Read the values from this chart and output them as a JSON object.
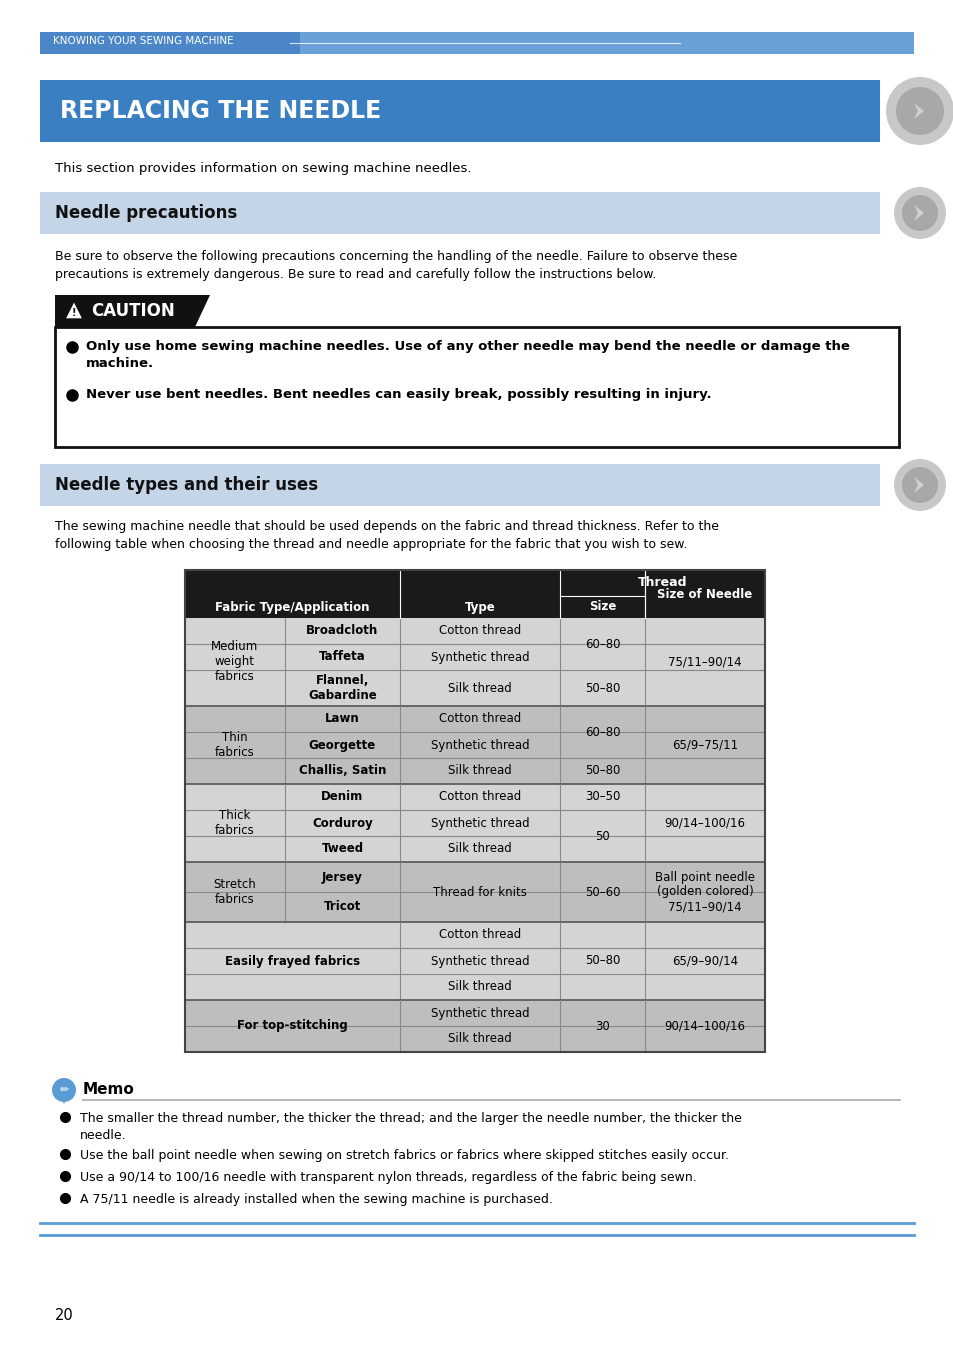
{
  "page_bg": "#ffffff",
  "top_bar_color": "#5b9bd5",
  "top_bar_text": "KNOWING YOUR SEWING MACHINE",
  "main_title": "REPLACING THE NEEDLE",
  "main_title_bg": "#3a7fc1",
  "section1_title": "Needle precautions",
  "section1_bg": "#c5d5e8",
  "section2_title": "Needle types and their uses",
  "section2_bg": "#c5d5e8",
  "intro_text1": "This section provides information on sewing machine needles.",
  "precaution_text_line1": "Be sure to observe the following precautions concerning the handling of the needle. Failure to observe these",
  "precaution_text_line2": "precautions is extremely dangerous. Be sure to read and carefully follow the instructions below.",
  "caution_bullet1a": "Only use home sewing machine needles. Use of any other needle may bend the needle or damage the",
  "caution_bullet1b": "machine.",
  "caution_bullet2": "Never use bent needles. Bent needles can easily break, possibly resulting in injury.",
  "intro3_line1": "The sewing machine needle that should be used depends on the fabric and thread thickness. Refer to the",
  "intro3_line2": "following table when choosing the thread and needle appropriate for the fabric that you wish to sew.",
  "memo_bullet1a": "The smaller the thread number, the thicker the thread; and the larger the needle number, the thicker the",
  "memo_bullet1b": "needle.",
  "memo_bullet2": "Use the ball point needle when sewing on stretch fabrics or fabrics where skipped stitches easily occur.",
  "memo_bullet3": "Use a 90/14 to 100/16 needle with transparent nylon threads, regardless of the fabric being sewn.",
  "memo_bullet4": "A 75/11 needle is already installed when the sewing machine is purchased.",
  "page_number": "20",
  "table_hdr_bg": "#1a1a1a",
  "table_hdr_color": "#ffffff",
  "table_light_bg": "#d4d4d4",
  "table_dark_bg": "#b8b8b8"
}
